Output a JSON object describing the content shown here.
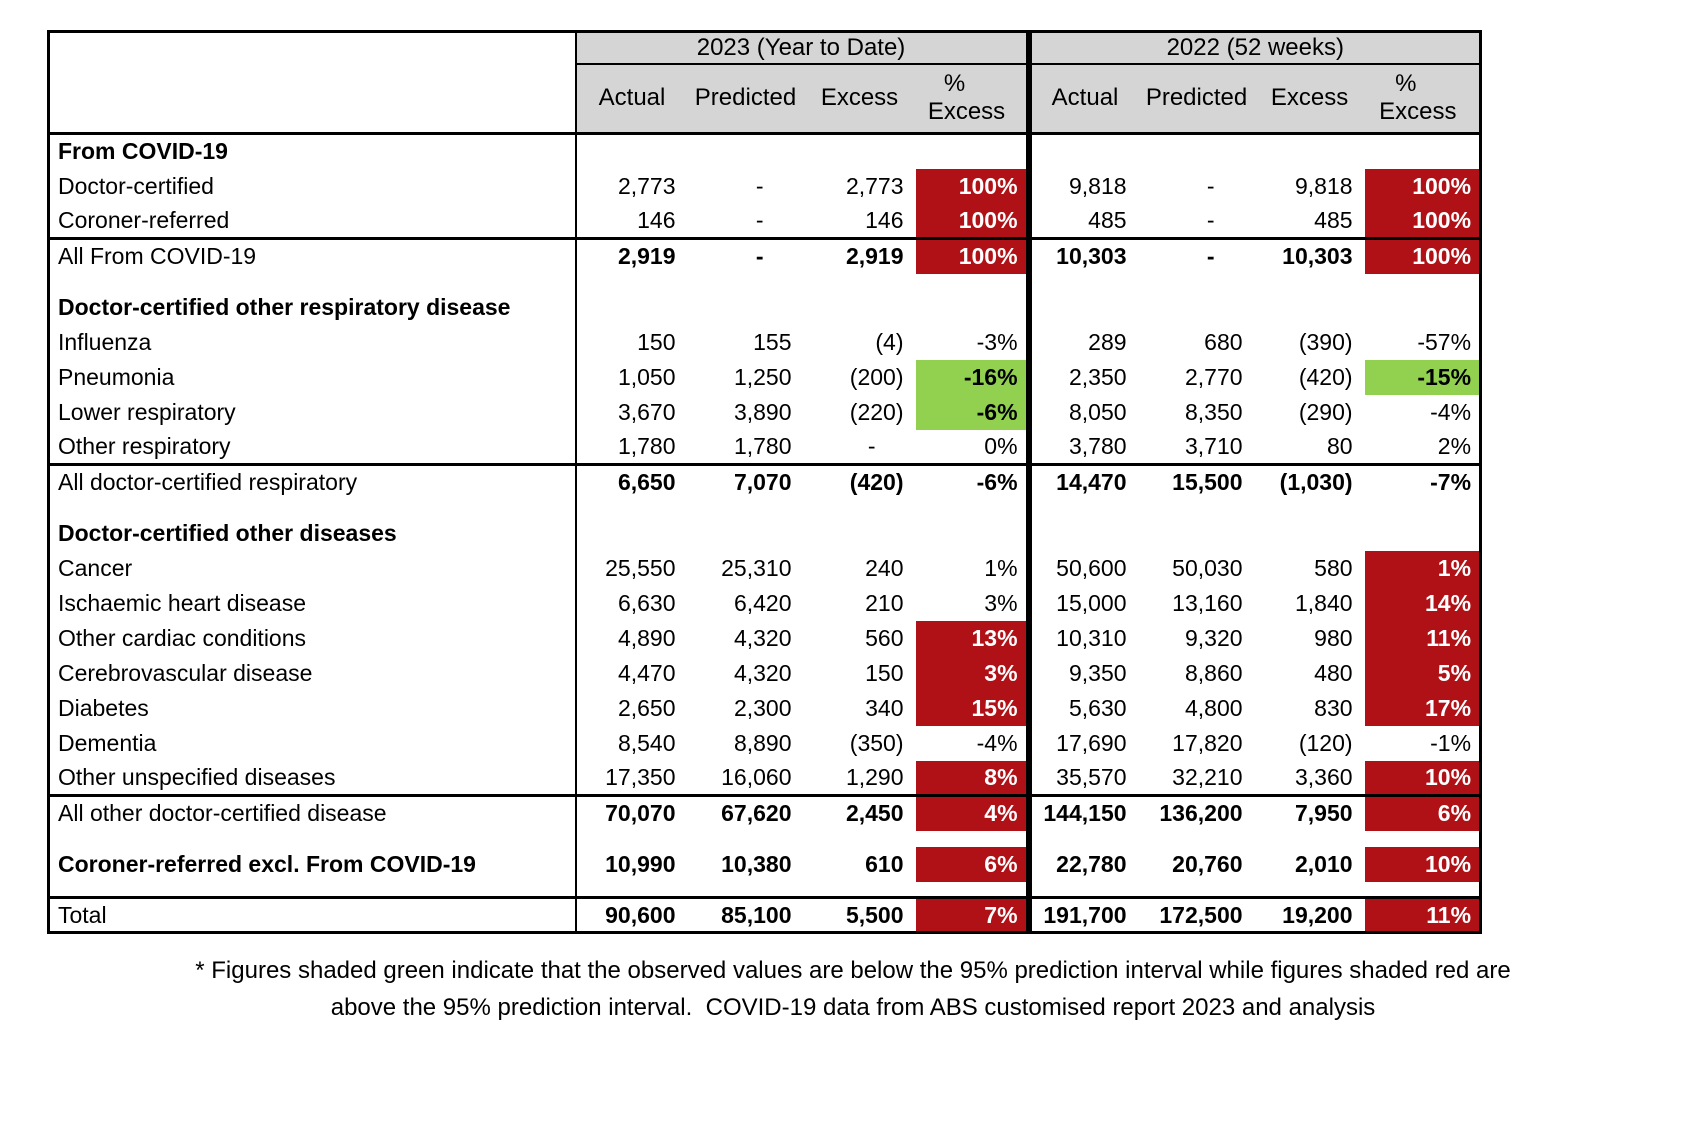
{
  "header": {
    "group_2023": "2023 (Year to Date)",
    "group_2022": "2022 (52 weeks)",
    "cols": [
      "Actual",
      "Predicted",
      "Excess"
    ],
    "pct_header": [
      "%",
      "Excess"
    ]
  },
  "colors": {
    "red": "#B01116",
    "green": "#92D050",
    "header_bg": "#D5D5D5"
  },
  "rows": [
    {
      "kind": "section",
      "label": "From COVID-19"
    },
    {
      "kind": "data",
      "label": "Doctor-certified",
      "v23": [
        "2,773",
        "-",
        "2,773",
        "100%"
      ],
      "s23": "red",
      "v22": [
        "9,818",
        "-",
        "9,818",
        "100%"
      ],
      "s22": "red"
    },
    {
      "kind": "data",
      "label": "Coroner-referred",
      "v23": [
        "146",
        "-",
        "146",
        "100%"
      ],
      "s23": "red",
      "v22": [
        "485",
        "-",
        "485",
        "100%"
      ],
      "s22": "red"
    },
    {
      "kind": "subtotal",
      "label": "All From COVID-19",
      "v23": [
        "2,919",
        "-",
        "2,919",
        "100%"
      ],
      "s23": "red",
      "v22": [
        "10,303",
        "-",
        "10,303",
        "100%"
      ],
      "s22": "red"
    },
    {
      "kind": "spacer"
    },
    {
      "kind": "section",
      "label": "Doctor-certified other respiratory disease"
    },
    {
      "kind": "data",
      "label": "Influenza",
      "v23": [
        "150",
        "155",
        "(4)",
        "-3%"
      ],
      "s23": null,
      "v22": [
        "289",
        "680",
        "(390)",
        "-57%"
      ],
      "s22": null
    },
    {
      "kind": "data",
      "label": "Pneumonia",
      "v23": [
        "1,050",
        "1,250",
        "(200)",
        "-16%"
      ],
      "s23": "green",
      "v22": [
        "2,350",
        "2,770",
        "(420)",
        "-15%"
      ],
      "s22": "green"
    },
    {
      "kind": "data",
      "label": "Lower respiratory",
      "v23": [
        "3,670",
        "3,890",
        "(220)",
        "-6%"
      ],
      "s23": "green",
      "v22": [
        "8,050",
        "8,350",
        "(290)",
        "-4%"
      ],
      "s22": null
    },
    {
      "kind": "data",
      "label": "Other respiratory",
      "v23": [
        "1,780",
        "1,780",
        "-",
        "0%"
      ],
      "s23": null,
      "v22": [
        "3,780",
        "3,710",
        "80",
        "2%"
      ],
      "s22": null
    },
    {
      "kind": "subtotal",
      "label": "All doctor-certified respiratory",
      "v23": [
        "6,650",
        "7,070",
        "(420)",
        "-6%"
      ],
      "s23": null,
      "v22": [
        "14,470",
        "15,500",
        "(1,030)",
        "-7%"
      ],
      "s22": null
    },
    {
      "kind": "spacer"
    },
    {
      "kind": "section",
      "label": "Doctor-certified other diseases"
    },
    {
      "kind": "data",
      "label": "Cancer",
      "v23": [
        "25,550",
        "25,310",
        "240",
        "1%"
      ],
      "s23": null,
      "v22": [
        "50,600",
        "50,030",
        "580",
        "1%"
      ],
      "s22": "red"
    },
    {
      "kind": "data",
      "label": "Ischaemic heart disease",
      "v23": [
        "6,630",
        "6,420",
        "210",
        "3%"
      ],
      "s23": null,
      "v22": [
        "15,000",
        "13,160",
        "1,840",
        "14%"
      ],
      "s22": "red"
    },
    {
      "kind": "data",
      "label": "Other cardiac conditions",
      "v23": [
        "4,890",
        "4,320",
        "560",
        "13%"
      ],
      "s23": "red",
      "v22": [
        "10,310",
        "9,320",
        "980",
        "11%"
      ],
      "s22": "red"
    },
    {
      "kind": "data",
      "label": "Cerebrovascular disease",
      "v23": [
        "4,470",
        "4,320",
        "150",
        "3%"
      ],
      "s23": "red",
      "v22": [
        "9,350",
        "8,860",
        "480",
        "5%"
      ],
      "s22": "red"
    },
    {
      "kind": "data",
      "label": "Diabetes",
      "v23": [
        "2,650",
        "2,300",
        "340",
        "15%"
      ],
      "s23": "red",
      "v22": [
        "5,630",
        "4,800",
        "830",
        "17%"
      ],
      "s22": "red"
    },
    {
      "kind": "data",
      "label": "Dementia",
      "v23": [
        "8,540",
        "8,890",
        "(350)",
        "-4%"
      ],
      "s23": null,
      "v22": [
        "17,690",
        "17,820",
        "(120)",
        "-1%"
      ],
      "s22": null
    },
    {
      "kind": "data",
      "label": "Other unspecified diseases",
      "v23": [
        "17,350",
        "16,060",
        "1,290",
        "8%"
      ],
      "s23": "red",
      "v22": [
        "35,570",
        "32,210",
        "3,360",
        "10%"
      ],
      "s22": "red"
    },
    {
      "kind": "subtotal",
      "label": "All other doctor-certified disease",
      "v23": [
        "70,070",
        "67,620",
        "2,450",
        "4%"
      ],
      "s23": "red",
      "v22": [
        "144,150",
        "136,200",
        "7,950",
        "6%"
      ],
      "s22": "red"
    },
    {
      "kind": "spacer"
    },
    {
      "kind": "data",
      "label": "Coroner-referred excl. From COVID-19",
      "boldLabel": true,
      "boldVals": true,
      "v23": [
        "10,990",
        "10,380",
        "610",
        "6%"
      ],
      "s23": "red",
      "v22": [
        "22,780",
        "20,760",
        "2,010",
        "10%"
      ],
      "s22": "red"
    },
    {
      "kind": "spacer"
    },
    {
      "kind": "subtotal",
      "label": "Total",
      "v23": [
        "90,600",
        "85,100",
        "5,500",
        "7%"
      ],
      "s23": "red",
      "v22": [
        "191,700",
        "172,500",
        "19,200",
        "11%"
      ],
      "s22": "red"
    }
  ],
  "footnote": {
    "line1": "* Figures shaded green indicate that the observed values are below the 95% prediction interval while figures shaded red are",
    "line2": "above the 95% prediction interval.  COVID-19 data from ABS customised report 2023 and analysis"
  }
}
